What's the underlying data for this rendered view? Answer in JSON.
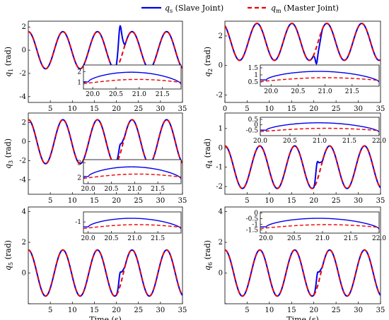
{
  "legend": {
    "position": "top-center",
    "items": [
      {
        "sym": "q",
        "sub": "s",
        "text": "(Slave Joint)",
        "color": "#0000ee",
        "dash": false
      },
      {
        "sym": "q",
        "sub": "m",
        "text": "(Master Joint)",
        "color": "#ee0000",
        "dash": true
      }
    ]
  },
  "chart_data": [
    {
      "type": "line",
      "panel": "q1",
      "ylabel_sym": "q",
      "ylabel_sub": "1",
      "ylabel_unit": "(rad)",
      "xlabel": "",
      "xlim": [
        0,
        35
      ],
      "ylim": [
        -4.5,
        2.5
      ],
      "xticks": [
        5,
        10,
        15,
        20,
        25,
        30,
        35
      ],
      "yticks": [
        -4,
        -2,
        0,
        2
      ],
      "xtick_labels": [
        "5",
        "10",
        "15",
        "20",
        "25",
        "30",
        "35"
      ],
      "ytick_labels": [
        "-4",
        "-2",
        "0",
        "2"
      ],
      "signal": {
        "amp": 1.6,
        "offset": 0,
        "phase": 0,
        "period": 7.85
      },
      "disturbance": {
        "t0": 19.8,
        "t1": 22.0,
        "peak": 3.0,
        "center": 20.8,
        "width": 0.4
      },
      "inset": {
        "xlim": [
          19.8,
          21.9
        ],
        "ylim": [
          0.4,
          2.6
        ],
        "xticks": [
          20,
          20.5,
          21,
          21.5
        ],
        "yticks": [
          1,
          2
        ],
        "xtick_labels": [
          "20.0",
          "20.5",
          "21.0",
          "21.5"
        ],
        "ytick_labels": [
          "1",
          "2"
        ]
      }
    },
    {
      "type": "line",
      "panel": "q2",
      "ylabel_sym": "q",
      "ylabel_sub": "2",
      "ylabel_unit": "(rad)",
      "xlabel": "",
      "xlim": [
        0,
        35
      ],
      "ylim": [
        -2.5,
        3.0
      ],
      "xticks": [
        0,
        5,
        10,
        15,
        20,
        25,
        30,
        35
      ],
      "yticks": [
        -2,
        0,
        2
      ],
      "xtick_labels": [
        "0",
        "5",
        "10",
        "15",
        "20",
        "25",
        "30",
        "35"
      ],
      "ytick_labels": [
        "-2",
        "0",
        "2"
      ],
      "signal": {
        "amp": 1.25,
        "offset": 1.6,
        "phase": 0.5,
        "period": 7.85
      },
      "disturbance": {
        "t0": 19.8,
        "t1": 22.0,
        "peak": -1.2,
        "center": 20.6,
        "width": 0.3
      },
      "inset": {
        "xlim": [
          19.8,
          22.0
        ],
        "ylim": [
          0.2,
          1.7
        ],
        "xticks": [
          20,
          20.5,
          21,
          21.5
        ],
        "yticks": [
          0.5,
          1,
          1.5
        ],
        "xtick_labels": [
          "20.0",
          "20.5",
          "21.0",
          "21.5"
        ],
        "ytick_labels": [
          "0.5",
          "1",
          "1.5"
        ]
      }
    },
    {
      "type": "line",
      "panel": "q3",
      "ylabel_sym": "q",
      "ylabel_sub": "3",
      "ylabel_unit": "(rad)",
      "xlabel": "",
      "xlim": [
        0,
        35
      ],
      "ylim": [
        -5.5,
        3.0
      ],
      "xticks": [
        5,
        10,
        15,
        20,
        25,
        30,
        35
      ],
      "yticks": [
        -4,
        -2,
        0,
        2
      ],
      "xtick_labels": [
        "5",
        "10",
        "15",
        "20",
        "25",
        "30",
        "35"
      ],
      "ytick_labels": [
        "-4",
        "-2",
        "0",
        "2"
      ],
      "signal": {
        "amp": 2.3,
        "offset": 0,
        "phase": 0,
        "period": 7.85
      },
      "disturbance": {
        "t0": 19.8,
        "t1": 22.0,
        "peak": 1.0,
        "center": 20.8,
        "width": 0.3
      },
      "inset": {
        "xlim": [
          19.9,
          22.0
        ],
        "ylim": [
          1.6,
          3.2
        ],
        "xticks": [
          20,
          20.5,
          21,
          21.5
        ],
        "yticks": [
          2,
          3
        ],
        "xtick_labels": [
          "20.0",
          "20.5",
          "21.0",
          "21.5"
        ],
        "ytick_labels": [
          "2",
          "3"
        ]
      }
    },
    {
      "type": "line",
      "panel": "q4",
      "ylabel_sym": "q",
      "ylabel_sub": "4",
      "ylabel_unit": "(rad)",
      "xlabel": "",
      "xlim": [
        0,
        35
      ],
      "ylim": [
        -2.4,
        1.8
      ],
      "xticks": [
        5,
        10,
        15,
        20,
        25,
        30,
        35
      ],
      "yticks": [
        -2,
        -1,
        0,
        1
      ],
      "xtick_labels": [
        "5",
        "10",
        "15",
        "20",
        "25",
        "30",
        "35"
      ],
      "ytick_labels": [
        "-2",
        "-1",
        "0",
        "1"
      ],
      "signal": {
        "amp": 1.1,
        "offset": -1.0,
        "phase": 0,
        "period": 7.85
      },
      "disturbance": {
        "t0": 20.0,
        "t1": 22.0,
        "peak": 1.0,
        "center": 20.7,
        "width": 0.35
      },
      "inset": {
        "xlim": [
          20.0,
          22.0
        ],
        "ylim": [
          -1.0,
          0.7
        ],
        "xticks": [
          20,
          20.5,
          21,
          21.5,
          22
        ],
        "yticks": [
          -0.5,
          0,
          0.5
        ],
        "xtick_labels": [
          "20.0",
          "20.5",
          "21.0",
          "21.5",
          "22.0"
        ],
        "ytick_labels": [
          "-0.5",
          "0",
          "0.5"
        ]
      }
    },
    {
      "type": "line",
      "panel": "q5",
      "ylabel_sym": "q",
      "ylabel_sub": "5",
      "ylabel_unit": "(rad)",
      "xlabel": "Time (s)",
      "xlim": [
        0,
        35
      ],
      "ylim": [
        -2.0,
        4.3
      ],
      "xticks": [
        5,
        10,
        15,
        20,
        25,
        30,
        35
      ],
      "yticks": [
        -2,
        0,
        2,
        4
      ],
      "xtick_labels": [
        "5",
        "10",
        "15",
        "20",
        "25",
        "30",
        "35"
      ],
      "ytick_labels": [
        "",
        "0",
        "2",
        "4"
      ],
      "signal": {
        "amp": 1.5,
        "offset": 0,
        "phase": 0,
        "period": 7.85
      },
      "disturbance": {
        "t0": 20.0,
        "t1": 22.0,
        "peak": 0.9,
        "center": 20.8,
        "width": 0.3
      },
      "inset": {
        "xlim": [
          19.9,
          22.0
        ],
        "ylim": [
          -1.9,
          -0.2
        ],
        "xticks": [
          20,
          20.5,
          21,
          21.5
        ],
        "yticks": [
          -1
        ],
        "xtick_labels": [
          "20.0",
          "20.5",
          "21.0",
          "21.5"
        ],
        "ytick_labels": [
          "-1"
        ]
      }
    },
    {
      "type": "line",
      "panel": "q6",
      "ylabel_sym": "q",
      "ylabel_sub": "6",
      "ylabel_unit": "(rad)",
      "xlabel": "Time (s)",
      "xlim": [
        0,
        35
      ],
      "ylim": [
        -2.0,
        4.3
      ],
      "xticks": [
        5,
        10,
        15,
        20,
        25,
        30,
        35
      ],
      "yticks": [
        -2,
        0,
        2,
        4
      ],
      "xtick_labels": [
        "5",
        "10",
        "15",
        "20",
        "25",
        "30",
        "35"
      ],
      "ytick_labels": [
        "",
        "0",
        "2",
        "4"
      ],
      "signal": {
        "amp": 1.5,
        "offset": 0,
        "phase": 0,
        "period": 7.85
      },
      "disturbance": {
        "t0": 20.0,
        "t1": 22.0,
        "peak": 0.9,
        "center": 20.8,
        "width": 0.3
      },
      "inset": {
        "xlim": [
          19.9,
          22.0
        ],
        "ylim": [
          -1.8,
          0.1
        ],
        "xticks": [
          20,
          20.5,
          21,
          21.5,
          22
        ],
        "yticks": [
          -1.5,
          -1,
          -0.5,
          0
        ],
        "xtick_labels": [
          "20.0",
          "20.5",
          "21.0",
          "21.5",
          "22.0"
        ],
        "ytick_labels": [
          "-1.5",
          "-1",
          "-0.5",
          "0"
        ]
      }
    }
  ]
}
